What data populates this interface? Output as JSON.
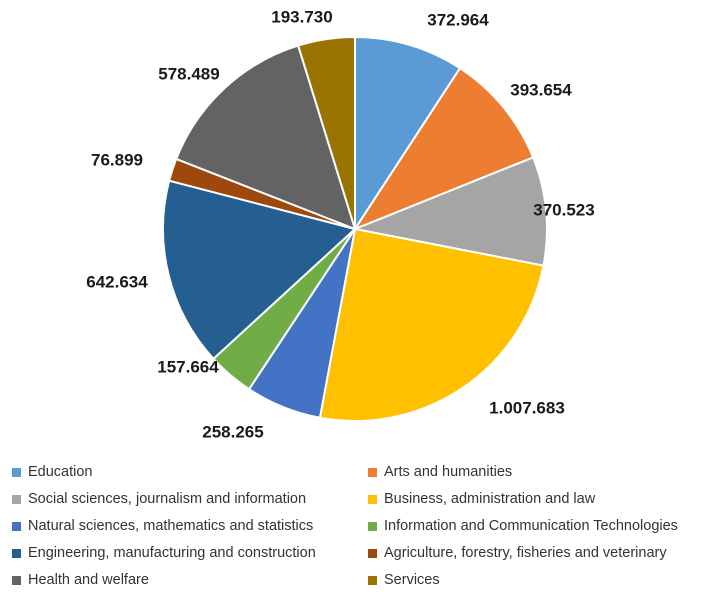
{
  "chart_data": {
    "type": "pie",
    "categories": [
      "Education",
      "Arts and humanities",
      "Social sciences, journalism and information",
      "Business, administration and law",
      "Natural sciences, mathematics and statistics",
      "Information and Communication Technologies",
      "Engineering, manufacturing and construction",
      "Agriculture, forestry, fisheries and veterinary",
      "Health and welfare",
      "Services"
    ],
    "values": [
      372964,
      393654,
      370523,
      1007683,
      258265,
      157664,
      642634,
      76899,
      578489,
      193730
    ],
    "data_labels": [
      "372.964",
      "393.654",
      "370.523",
      "1.007.683",
      "258.265",
      "157.664",
      "642.634",
      "76.899",
      "578.489",
      "193.730"
    ],
    "colors": [
      "#5B9BD5",
      "#ED7D31",
      "#A5A5A5",
      "#FFC000",
      "#4472C4",
      "#70AD47",
      "#255E91",
      "#9E480E",
      "#636363",
      "#997300"
    ],
    "legend_placement": "bottom",
    "start_angle_deg": 0,
    "direction": "clockwise"
  }
}
